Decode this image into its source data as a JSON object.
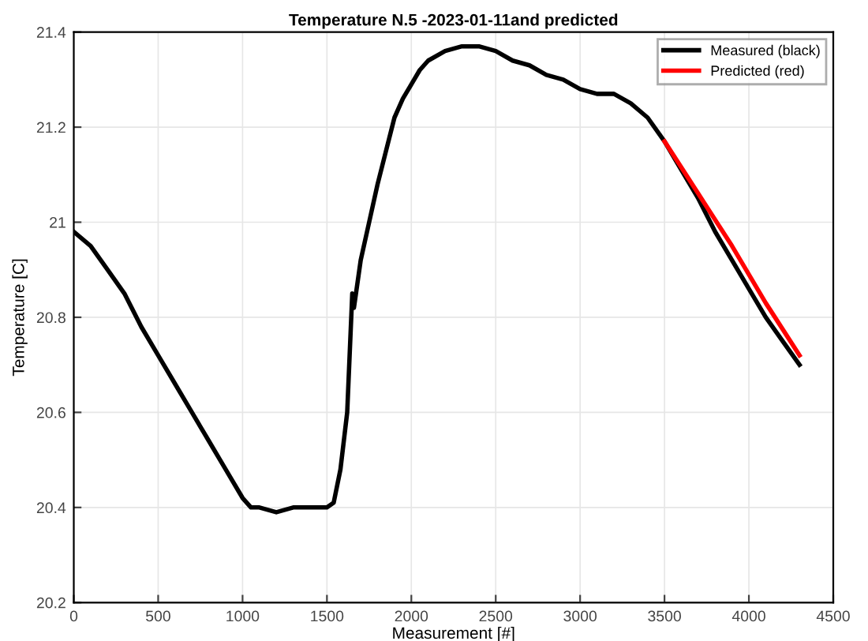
{
  "chart_data": {
    "type": "line",
    "title": "Temperature N.5 -2023-01-11and predicted",
    "xlabel": "Measurement [#]",
    "ylabel": "Temperature [C]",
    "series": [
      {
        "name": "Measured (black)",
        "color": "#000000",
        "x": [
          0,
          100,
          200,
          300,
          400,
          500,
          600,
          700,
          800,
          900,
          1000,
          1050,
          1100,
          1200,
          1300,
          1400,
          1500,
          1540,
          1580,
          1620,
          1650,
          1660,
          1700,
          1750,
          1800,
          1850,
          1900,
          1950,
          2000,
          2050,
          2100,
          2200,
          2300,
          2400,
          2500,
          2600,
          2700,
          2800,
          2900,
          3000,
          3100,
          3200,
          3300,
          3400,
          3500,
          3600,
          3700,
          3800,
          3900,
          4000,
          4100,
          4200,
          4300
        ],
        "values": [
          20.98,
          20.95,
          20.9,
          20.85,
          20.78,
          20.72,
          20.66,
          20.6,
          20.54,
          20.48,
          20.42,
          20.4,
          20.4,
          20.39,
          20.4,
          20.4,
          20.4,
          20.41,
          20.48,
          20.6,
          20.85,
          20.82,
          20.92,
          21.0,
          21.08,
          21.15,
          21.22,
          21.26,
          21.29,
          21.32,
          21.34,
          21.36,
          21.37,
          21.37,
          21.36,
          21.34,
          21.33,
          21.31,
          21.3,
          21.28,
          21.27,
          21.27,
          21.25,
          21.22,
          21.17,
          21.11,
          21.05,
          20.98,
          20.92,
          20.86,
          20.8,
          20.75,
          20.7
        ]
      },
      {
        "name": "Predicted (red)",
        "color": "#ff0000",
        "x": [
          3500,
          3700,
          3900,
          4100,
          4300
        ],
        "values": [
          21.17,
          21.06,
          20.95,
          20.83,
          20.72
        ]
      }
    ],
    "xlim": [
      0,
      4500
    ],
    "xticks": [
      0,
      500,
      1000,
      1500,
      2000,
      2500,
      3000,
      3500,
      4000,
      4500
    ],
    "ylim": [
      20.2,
      21.4
    ],
    "yticks": [
      20.2,
      20.4,
      20.6,
      20.8,
      21,
      21.2,
      21.4
    ],
    "grid": true,
    "legend": "top right",
    "line_style": "solid",
    "marker": "none"
  }
}
